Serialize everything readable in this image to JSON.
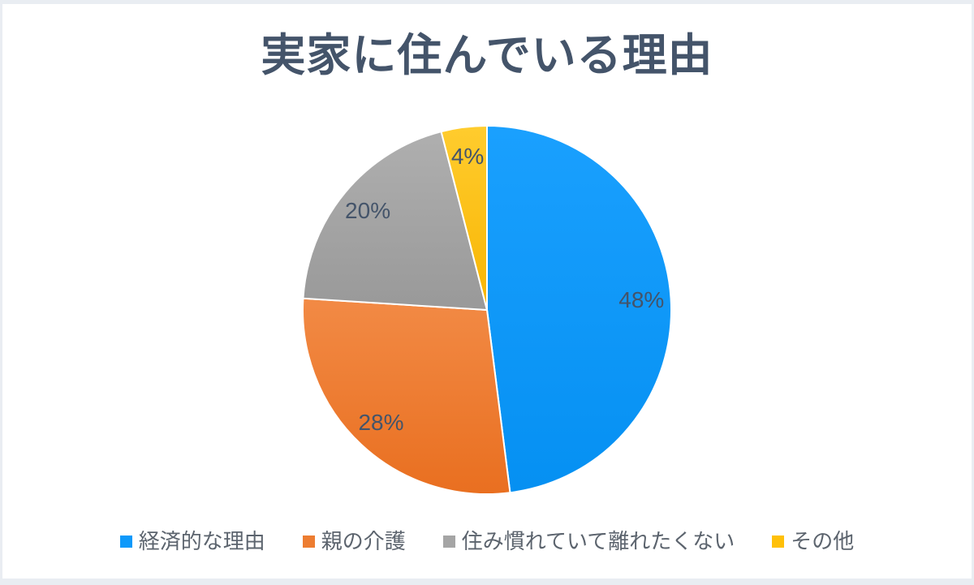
{
  "frame": {
    "background_color": "#E9EDF2",
    "card_color": "#FFFFFF"
  },
  "chart_data": {
    "type": "pie",
    "title": "実家に住んでいる理由",
    "categories": [
      "経済的な理由",
      "親の介護",
      "住み慣れていて離れたくない",
      "その他"
    ],
    "values": [
      48,
      28,
      20,
      4
    ],
    "labels": [
      "48%",
      "28%",
      "20%",
      "4%"
    ],
    "unit": "percent",
    "start_angle_deg": 0,
    "direction": "clockwise",
    "legend_position": "bottom",
    "colors": [
      "#0D99FA",
      "#ED7D31",
      "#A5A5A5",
      "#FFC008"
    ],
    "colors_gradient_top": [
      "#1AA0FE",
      "#F28A45",
      "#AFAFAF",
      "#FFCC2E"
    ],
    "colors_gradient_bottom": [
      "#0590F2",
      "#E96F20",
      "#999999",
      "#F8B503"
    ],
    "slice_border_color": "#FFFFFF",
    "title_color": "#44546A",
    "label_color": "#44546A",
    "legend_text_color": "#5C646E"
  }
}
